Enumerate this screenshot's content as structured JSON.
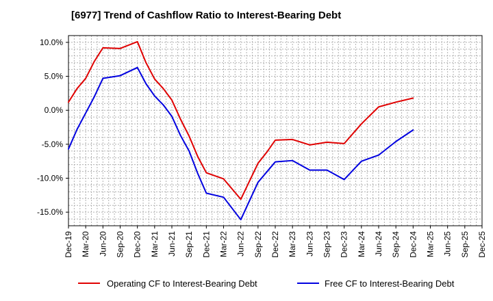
{
  "chart_data": {
    "type": "line",
    "title": "[6977]  Trend of Cashflow Ratio to Interest-Bearing Debt",
    "xlabel": "",
    "ylabel": "",
    "ylim": [
      -17,
      11
    ],
    "yticks": [
      10,
      5,
      0,
      -5,
      -10,
      -15
    ],
    "ytick_labels": [
      "10.0%",
      "5.0%",
      "0.0%",
      "-5.0%",
      "-10.0%",
      "-15.0%"
    ],
    "x_tick_labels": [
      "Dec-19",
      "Mar-20",
      "Jun-20",
      "Sep-20",
      "Dec-20",
      "Mar-21",
      "Jun-21",
      "Sep-21",
      "Dec-21",
      "Mar-22",
      "Jun-22",
      "Sep-22",
      "Dec-22",
      "Mar-23",
      "Jun-23",
      "Sep-23",
      "Dec-23",
      "Mar-24",
      "Jun-24",
      "Sep-24",
      "Dec-24",
      "Mar-25",
      "Jun-25",
      "Sep-25",
      "Dec-25"
    ],
    "grid": true,
    "legend_position": "bottom",
    "series": [
      {
        "name": "Operating CF to Interest-Bearing Debt",
        "color": "#e00000",
        "points": [
          [
            0,
            1.2
          ],
          [
            0.5,
            3.2
          ],
          [
            1,
            4.7
          ],
          [
            1.5,
            7.2
          ],
          [
            2,
            9.2
          ],
          [
            3,
            9.1
          ],
          [
            4,
            10.1
          ],
          [
            4.5,
            7.0
          ],
          [
            5,
            4.6
          ],
          [
            5.5,
            3.2
          ],
          [
            6,
            1.5
          ],
          [
            6.5,
            -1.3
          ],
          [
            7,
            -3.8
          ],
          [
            7.5,
            -6.8
          ],
          [
            8,
            -9.2
          ],
          [
            9,
            -10.1
          ],
          [
            10,
            -13.1
          ],
          [
            11,
            -7.8
          ],
          [
            11.5,
            -6.2
          ],
          [
            12,
            -4.4
          ],
          [
            13,
            -4.3
          ],
          [
            14,
            -5.1
          ],
          [
            15,
            -4.7
          ],
          [
            16,
            -4.9
          ],
          [
            17,
            -2.0
          ],
          [
            18,
            0.5
          ],
          [
            19,
            1.2
          ],
          [
            20,
            1.8
          ]
        ]
      },
      {
        "name": "Free CF to Interest-Bearing Debt",
        "color": "#0000e0",
        "points": [
          [
            0,
            -5.7
          ],
          [
            0.5,
            -2.8
          ],
          [
            1,
            -0.4
          ],
          [
            1.5,
            2.0
          ],
          [
            2,
            4.7
          ],
          [
            3,
            5.1
          ],
          [
            4,
            6.3
          ],
          [
            4.5,
            3.9
          ],
          [
            5,
            2.1
          ],
          [
            5.5,
            0.8
          ],
          [
            6,
            -0.9
          ],
          [
            6.5,
            -3.7
          ],
          [
            7,
            -6.0
          ],
          [
            7.5,
            -9.3
          ],
          [
            8,
            -12.2
          ],
          [
            9,
            -12.8
          ],
          [
            10,
            -16.1
          ],
          [
            11,
            -10.6
          ],
          [
            11.5,
            -9.1
          ],
          [
            12,
            -7.6
          ],
          [
            13,
            -7.4
          ],
          [
            14,
            -8.8
          ],
          [
            15,
            -8.8
          ],
          [
            16,
            -10.2
          ],
          [
            17,
            -7.5
          ],
          [
            18,
            -6.6
          ],
          [
            19,
            -4.6
          ],
          [
            20,
            -2.9
          ]
        ]
      }
    ]
  }
}
